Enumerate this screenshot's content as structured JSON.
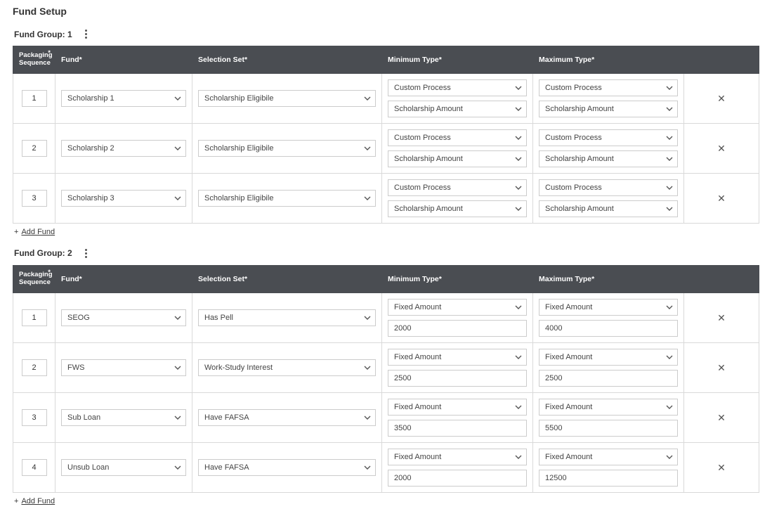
{
  "page_title": "Fund Setup",
  "headers": {
    "packaging_sequence": "Packaging Sequence",
    "fund": "Fund*",
    "selection_set": "Selection Set*",
    "minimum_type": "Minimum Type*",
    "maximum_type": "Maximum Type*"
  },
  "add_fund_label": "Add Fund",
  "colors": {
    "header_bg": "#4a4d52",
    "header_text": "#ffffff",
    "cell_border": "#d9d9d9",
    "input_border": "#cccccc",
    "text": "#333333"
  },
  "groups": [
    {
      "title": "Fund Group: 1",
      "rows": [
        {
          "seq": "1",
          "fund": "Scholarship 1",
          "selection_set": "Scholarship Eligibile",
          "min_type": "Custom Process",
          "min_value_type": "select",
          "min_value": "Scholarship Amount",
          "max_type": "Custom Process",
          "max_value_type": "select",
          "max_value": "Scholarship Amount"
        },
        {
          "seq": "2",
          "fund": "Scholarship 2",
          "selection_set": "Scholarship Eligibile",
          "min_type": "Custom Process",
          "min_value_type": "select",
          "min_value": "Scholarship Amount",
          "max_type": "Custom Process",
          "max_value_type": "select",
          "max_value": "Scholarship Amount"
        },
        {
          "seq": "3",
          "fund": "Scholarship 3",
          "selection_set": "Scholarship Eligibile",
          "min_type": "Custom Process",
          "min_value_type": "select",
          "min_value": "Scholarship Amount",
          "max_type": "Custom Process",
          "max_value_type": "select",
          "max_value": "Scholarship Amount"
        }
      ]
    },
    {
      "title": "Fund Group: 2",
      "rows": [
        {
          "seq": "1",
          "fund": "SEOG",
          "selection_set": "Has Pell",
          "min_type": "Fixed Amount",
          "min_value_type": "text",
          "min_value": "2000",
          "max_type": "Fixed Amount",
          "max_value_type": "text",
          "max_value": "4000"
        },
        {
          "seq": "2",
          "fund": "FWS",
          "selection_set": "Work-Study Interest",
          "min_type": "Fixed Amount",
          "min_value_type": "text",
          "min_value": "2500",
          "max_type": "Fixed Amount",
          "max_value_type": "text",
          "max_value": "2500"
        },
        {
          "seq": "3",
          "fund": "Sub Loan",
          "selection_set": "Have FAFSA",
          "min_type": "Fixed Amount",
          "min_value_type": "text",
          "min_value": "3500",
          "max_type": "Fixed Amount",
          "max_value_type": "text",
          "max_value": "5500"
        },
        {
          "seq": "4",
          "fund": "Unsub Loan",
          "selection_set": "Have FAFSA",
          "min_type": "Fixed Amount",
          "min_value_type": "text",
          "min_value": "2000",
          "max_type": "Fixed Amount",
          "max_value_type": "text",
          "max_value": "12500"
        }
      ]
    }
  ]
}
